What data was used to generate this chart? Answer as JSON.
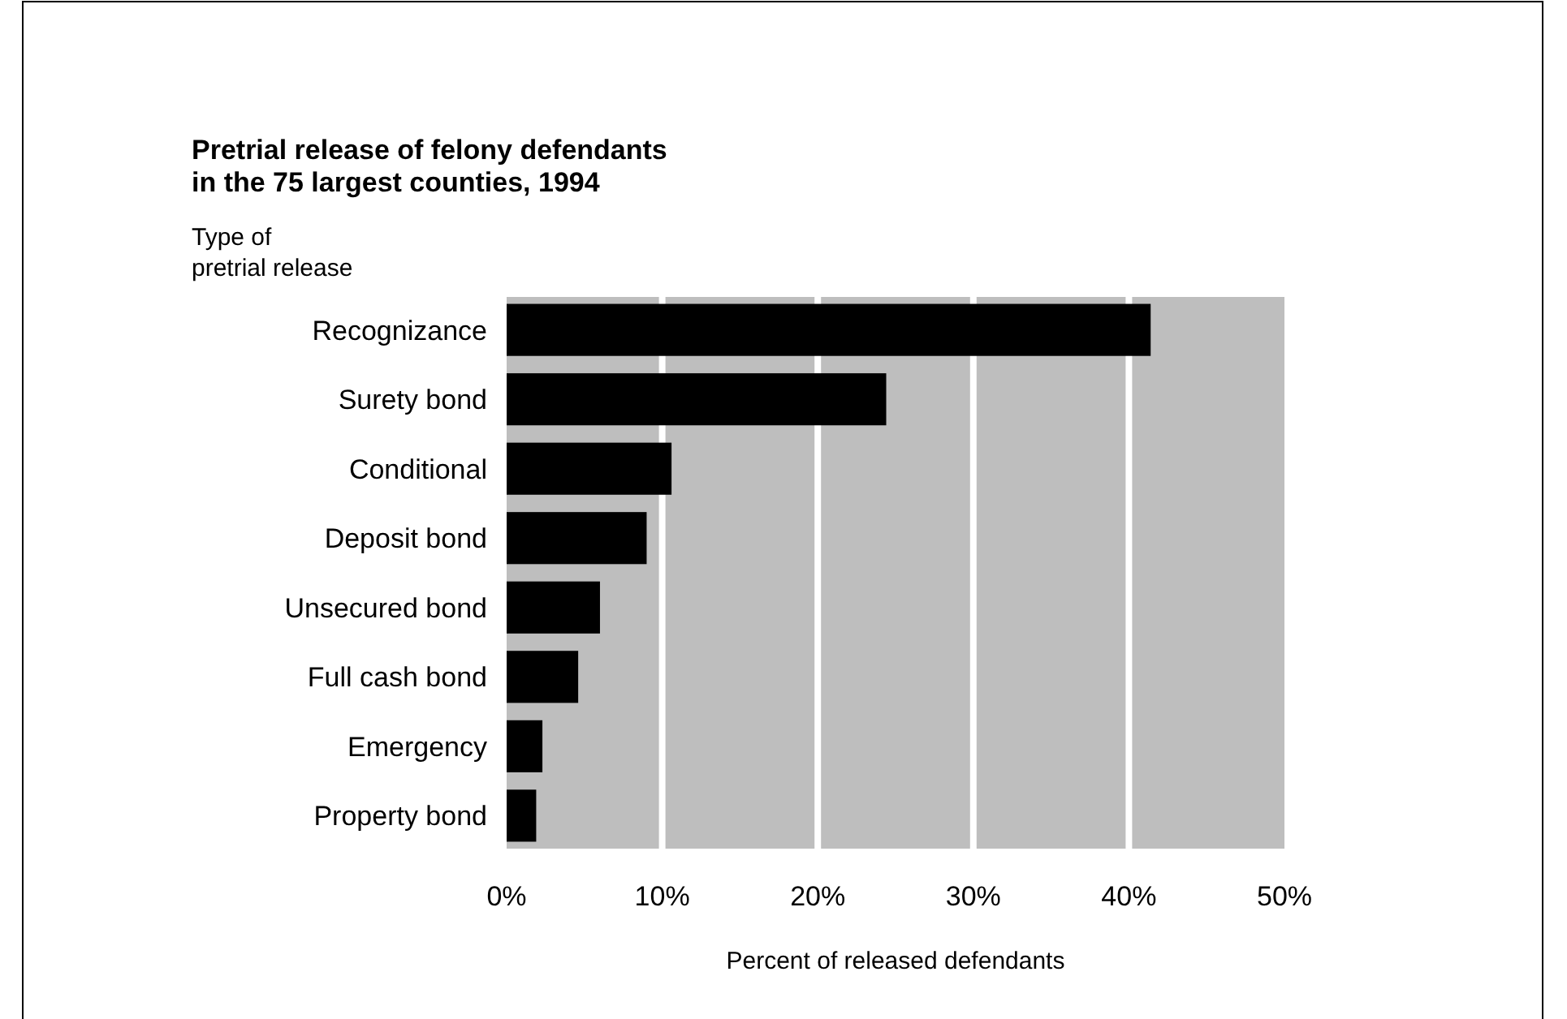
{
  "chart_data": {
    "type": "bar",
    "orientation": "horizontal",
    "title": "Pretrial release of felony defendants\nin the 75 largest counties, 1994",
    "ylabel": "Type of\npretrial release",
    "xlabel": "Percent of released defendants",
    "categories": [
      "Recognizance",
      "Surety bond",
      "Conditional",
      "Deposit bond",
      "Unsecured bond",
      "Full cash bond",
      "Emergency",
      "Property bond"
    ],
    "values": [
      41.4,
      24.4,
      10.6,
      9.0,
      6.0,
      4.6,
      2.3,
      1.9
    ],
    "color": "#000000",
    "xlim": [
      0,
      50
    ],
    "xticks": [
      {
        "value": 0,
        "label": "0%"
      },
      {
        "value": 10,
        "label": "10%"
      },
      {
        "value": 20,
        "label": "20%"
      },
      {
        "value": 30,
        "label": "30%"
      },
      {
        "value": 40,
        "label": "40%"
      },
      {
        "value": 50,
        "label": "50%"
      }
    ],
    "grid": "x"
  }
}
